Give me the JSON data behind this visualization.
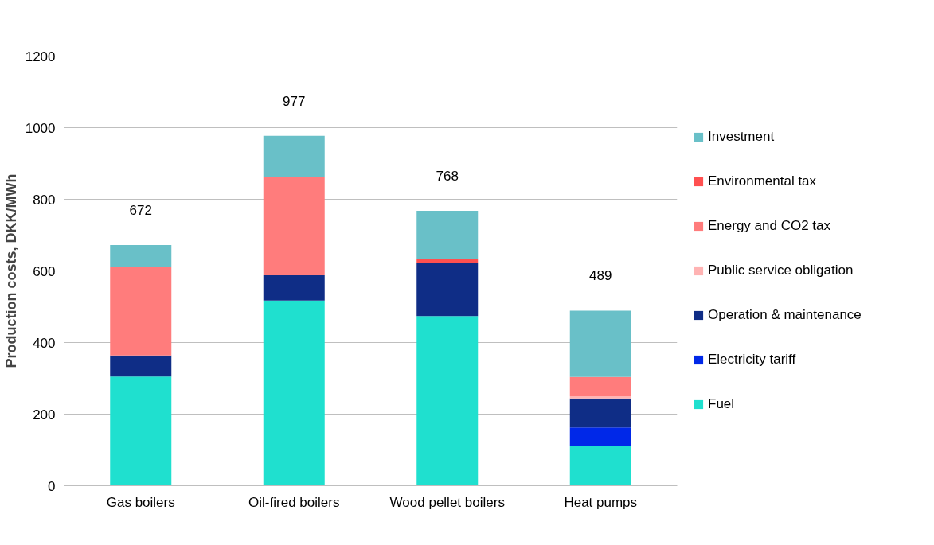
{
  "chart_data": {
    "type": "bar",
    "stacked": true,
    "ylabel": "Production costs, DKK/MWh",
    "categories": [
      "Gas boilers",
      "Oil-fired boilers",
      "Wood pellet boilers",
      "Heat pumps"
    ],
    "series": [
      {
        "name": "Fuel",
        "color": "#1fe0cf",
        "values": [
          305,
          517,
          474,
          110
        ]
      },
      {
        "name": "Electricity tariff",
        "color": "#0028e8",
        "values": [
          0,
          0,
          0,
          53
        ]
      },
      {
        "name": "Operation & maintenance",
        "color": "#0f2d86",
        "values": [
          59,
          71,
          148,
          81
        ]
      },
      {
        "name": "Public service obligation",
        "color": "#ffb3b3",
        "values": [
          0,
          0,
          0,
          6
        ]
      },
      {
        "name": "Energy and CO2 tax",
        "color": "#ff7c7c",
        "values": [
          247,
          275,
          0,
          54
        ]
      },
      {
        "name": "Environmental tax",
        "color": "#ff5050",
        "values": [
          0,
          0,
          12,
          0
        ]
      },
      {
        "name": "Investment",
        "color": "#69c0c8",
        "values": [
          61,
          114,
          134,
          185
        ]
      }
    ],
    "totals": [
      "672",
      "977",
      "768",
      "489"
    ],
    "ylim": [
      0,
      1200
    ],
    "yticks": [
      0,
      200,
      400,
      600,
      800,
      1000,
      1200
    ],
    "grid": "y",
    "legend": "right"
  }
}
